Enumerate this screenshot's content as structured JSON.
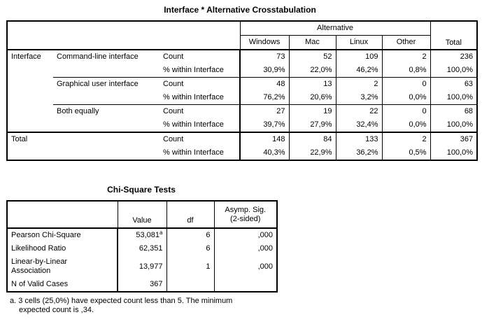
{
  "crosstab": {
    "title": "Interface * Alternative Crosstabulation",
    "group_header": "Alternative",
    "col_headers": [
      "Windows",
      "Mac",
      "Linux",
      "Other",
      "Total"
    ],
    "row_dimension": "Interface",
    "rows": [
      {
        "group": "Command-line interface",
        "count_label": "Count",
        "pct_label": "% within Interface",
        "count": [
          "73",
          "52",
          "109",
          "2",
          "236"
        ],
        "pct": [
          "30,9%",
          "22,0%",
          "46,2%",
          "0,8%",
          "100,0%"
        ]
      },
      {
        "group": "Graphical user interface",
        "count_label": "Count",
        "pct_label": "% within Interface",
        "count": [
          "48",
          "13",
          "2",
          "0",
          "63"
        ],
        "pct": [
          "76,2%",
          "20,6%",
          "3,2%",
          "0,0%",
          "100,0%"
        ]
      },
      {
        "group": "Both equally",
        "count_label": "Count",
        "pct_label": "% within Interface",
        "count": [
          "27",
          "19",
          "22",
          "0",
          "68"
        ],
        "pct": [
          "39,7%",
          "27,9%",
          "32,4%",
          "0,0%",
          "100,0%"
        ]
      }
    ],
    "total": {
      "label": "Total",
      "count_label": "Count",
      "pct_label": "% within Interface",
      "count": [
        "148",
        "84",
        "133",
        "2",
        "367"
      ],
      "pct": [
        "40,3%",
        "22,9%",
        "36,2%",
        "0,5%",
        "100,0%"
      ]
    }
  },
  "chisq": {
    "title": "Chi-Square Tests",
    "headers": {
      "value": "Value",
      "df": "df",
      "sig_line1": "Asymp. Sig.",
      "sig_line2": "(2-sided)"
    },
    "rows": [
      {
        "label": "Pearson Chi-Square",
        "value": "53,081",
        "sup": "a",
        "df": "6",
        "sig": ",000"
      },
      {
        "label": "Likelihood Ratio",
        "value": "62,351",
        "df": "6",
        "sig": ",000"
      },
      {
        "label_line1": "Linear-by-Linear",
        "label_line2": "Association",
        "value": "13,977",
        "df": "1",
        "sig": ",000"
      },
      {
        "label": "N of Valid Cases",
        "value": "367"
      }
    ],
    "footnote_line1": "a. 3 cells (25,0%) have expected count less than 5. The minimum",
    "footnote_line2": "expected count is ,34."
  }
}
